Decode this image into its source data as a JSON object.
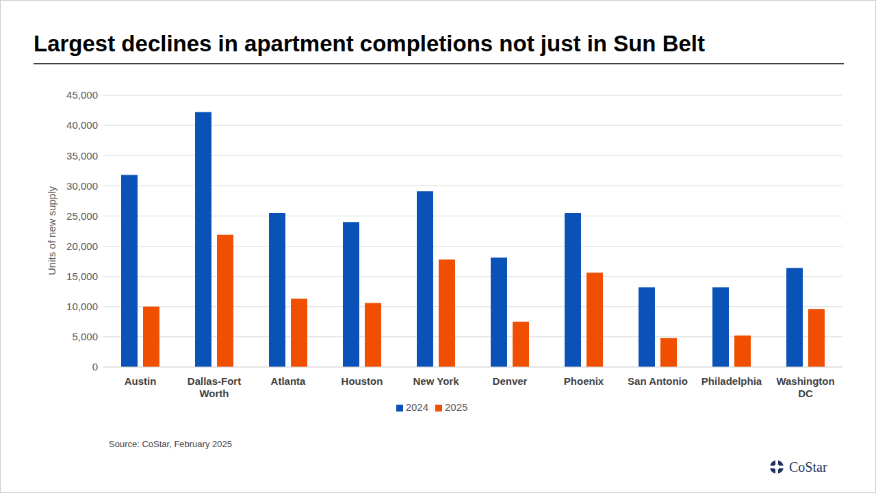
{
  "chart_data": {
    "type": "bar",
    "title": "Largest declines in apartment completions not just in Sun Belt",
    "y_label": "Units of new supply",
    "source": "Source: CoStar, February 2025",
    "brand": "CoStar",
    "categories": [
      "Austin",
      "Dallas-Fort Worth",
      "Atlanta",
      "Houston",
      "New York",
      "Denver",
      "Phoenix",
      "San Antonio",
      "Philadelphia",
      "Washington DC"
    ],
    "series": [
      {
        "name": "2024",
        "color": "#0B52B8",
        "values": [
          31800,
          42200,
          25500,
          24000,
          29100,
          18100,
          25500,
          13200,
          13200,
          16400
        ]
      },
      {
        "name": "2025",
        "color": "#F04E00",
        "values": [
          10000,
          21900,
          11300,
          10600,
          17800,
          7500,
          15600,
          4800,
          5200,
          9600
        ]
      }
    ],
    "ylim": [
      0,
      45000
    ],
    "yticks": [
      0,
      {
        "value": 5000,
        "label": "5,000"
      },
      {
        "value": 10000,
        "label": "10,000"
      },
      {
        "value": 15000,
        "label": "15,000"
      },
      {
        "value": 20000,
        "label": "20,000"
      },
      {
        "value": 25000,
        "label": "25,000"
      },
      {
        "value": 30000,
        "label": "30,000"
      },
      {
        "value": 35000,
        "label": "35,000"
      },
      {
        "value": 40000,
        "label": "40,000"
      },
      {
        "value": 45000,
        "label": "45,000"
      }
    ],
    "grid": true,
    "legend": "bottom"
  }
}
